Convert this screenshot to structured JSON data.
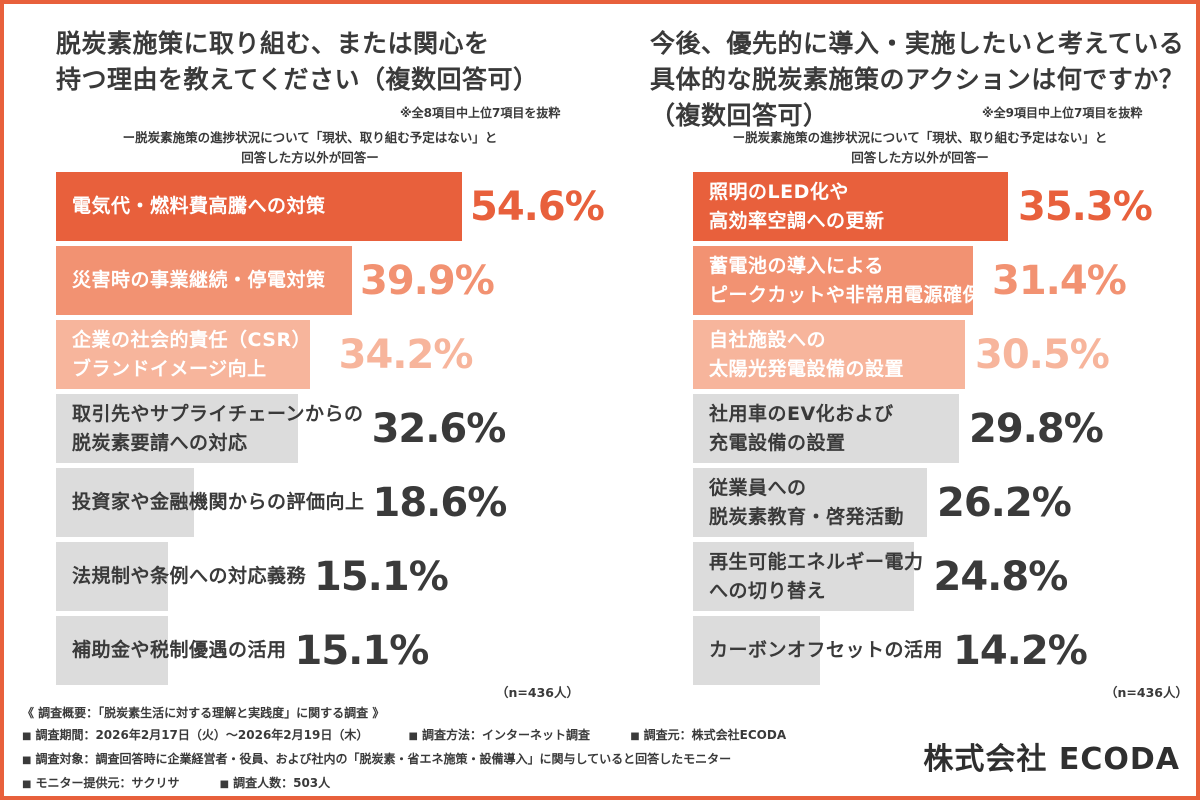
{
  "left": {
    "title": "脱炭素施策に取り組む、または関心を\n持つ理由を教えてください（複数回答可）",
    "note": "※全8項目中上位7項目を抜粋",
    "subtitle": "ー脱炭素施策の進捗状況について「現状、取り組む予定はない」と\n回答した方以外が回答ー",
    "n": "（n=436人）"
  },
  "right": {
    "title": "今後、優先的に導入・実施したいと考えている\n具体的な脱炭素施策のアクションは何ですか？\n（複数回答可）",
    "note": "※全9項目中上位7項目を抜粋",
    "subtitle": "ー脱炭素施策の進捗状況について「現状、取り組む予定はない」と\n回答した方以外が回答ー",
    "n": "（n=436人）"
  },
  "chart_data": [
    {
      "type": "bar",
      "orientation": "horizontal",
      "title": "脱炭素施策に取り組む、または関心を持つ理由を教えてください（複数回答可）",
      "categories": [
        "電気代・燃料費高騰への対策",
        "災害時の事業継続・停電対策",
        "企業の社会的責任（CSR）や\nブランドイメージ向上",
        "取引先やサプライチェーンからの\n脱炭素要請への対応",
        "投資家や金融機関からの評価向上",
        "法規制や条例への対応義務",
        "補助金や税制優遇の活用"
      ],
      "values": [
        54.6,
        39.9,
        34.2,
        32.6,
        18.6,
        15.1,
        15.1
      ],
      "value_labels": [
        "54.6%",
        "39.9%",
        "34.2%",
        "32.6%",
        "18.6%",
        "15.1%",
        "15.1%"
      ],
      "xlim": [
        0,
        70
      ],
      "grid": false
    },
    {
      "type": "bar",
      "orientation": "horizontal",
      "title": "今後、優先的に導入・実施したいと考えている具体的な脱炭素施策のアクションは何ですか？（複数回答可）",
      "categories": [
        "照明のLED化や\n高効率空調への更新",
        "蓄電池の導入による\nピークカットや非常用電源確保",
        "自社施設への\n太陽光発電設備の設置",
        "社用車のEV化および\n充電設備の設置",
        "従業員への\n脱炭素教育・啓発活動",
        "再生可能エネルギー電力\nへの切り替え",
        "カーボンオフセットの活用"
      ],
      "values": [
        35.3,
        31.4,
        30.5,
        29.8,
        26.2,
        24.8,
        14.2
      ],
      "value_labels": [
        "35.3%",
        "31.4%",
        "30.5%",
        "29.8%",
        "26.2%",
        "24.8%",
        "14.2%"
      ],
      "xlim": [
        0,
        37.7
      ],
      "grid": false
    }
  ],
  "colors": {
    "rank1": "#e8603c",
    "rank2": "#f29272",
    "rank3": "#f7b59c",
    "other": "#dcdcdc",
    "bar_bg": "#ececec",
    "text_dark": "#3a3a3a",
    "text_light": "#ffffff"
  },
  "footer": {
    "line1": "《 調査概要：「脱炭素生活に対する理解と実践度」に関する調査 》",
    "period": "調査期間：2026年2月17日（火）〜2026年2月19日（木）",
    "method": "調査方法：インターネット調査",
    "source": "調査元：株式会社ECODA",
    "target": "調査対象：調査回答時に企業経営者・役員、および社内の「脱炭素・省エネ施策・設備導入」に関与していると回答したモニター",
    "provider": "モニター提供元：サクリサ",
    "count": "調査人数：503人",
    "bullet": "■"
  },
  "brand": "株式会社 ECODA"
}
